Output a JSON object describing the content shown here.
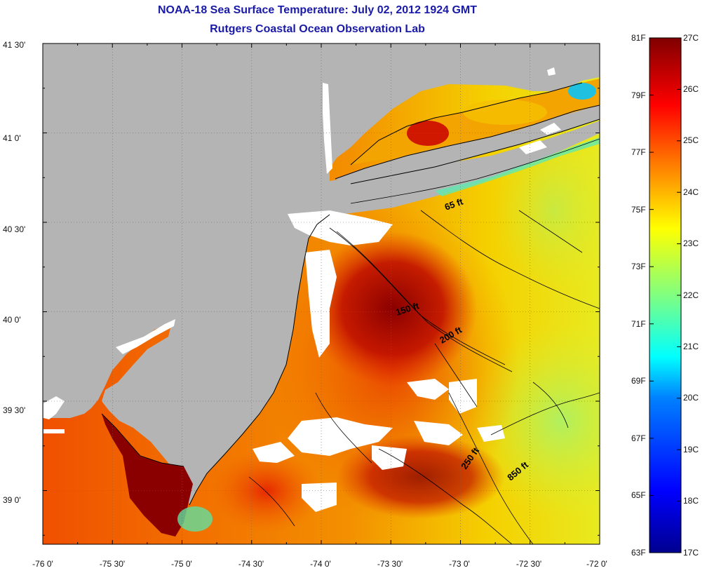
{
  "title": "NOAA-18 Sea Surface Temperature:  July 02, 2012 1924 GMT",
  "subtitle": "Rutgers Coastal Ocean Observation Lab",
  "axes": {
    "x_ticks": [
      "-76 0'",
      "-75 30'",
      "-75 0'",
      "-74 30'",
      "-74 0'",
      "-73 30'",
      "-73 0'",
      "-72 30'",
      "-72 0'"
    ],
    "y_ticks": [
      "41 30'",
      "41 0'",
      "40 30'",
      "40 0'",
      "39 30'",
      "39 0'"
    ],
    "lon_range": [
      -76.0,
      -72.0
    ],
    "lat_range": [
      38.7,
      41.5
    ]
  },
  "contour_labels": [
    "65 ft",
    "150 ft",
    "200 ft",
    "250 ft",
    "850 ft"
  ],
  "colorbar": {
    "f_labels": [
      "81F",
      "79F",
      "77F",
      "75F",
      "73F",
      "71F",
      "69F",
      "67F",
      "65F",
      "63F"
    ],
    "c_labels": [
      "27C",
      "26C",
      "25C",
      "24C",
      "23C",
      "22C",
      "21C",
      "20C",
      "19C",
      "18C",
      "17C"
    ],
    "range_c": [
      17,
      27
    ],
    "colors": [
      "#00008f",
      "#0000ff",
      "#0080ff",
      "#00ffff",
      "#80ff80",
      "#ffff00",
      "#ff8000",
      "#ff0000",
      "#800000"
    ]
  },
  "colors": {
    "land": "#b4b4b4",
    "cloud": "#ffffff",
    "title": "#1a1aa8"
  }
}
